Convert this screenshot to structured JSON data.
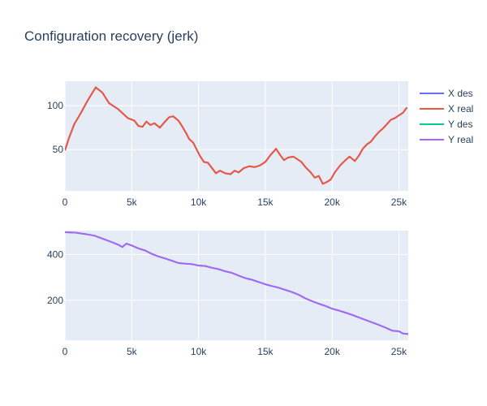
{
  "chart_data": {
    "type": "line",
    "title": "Configuration recovery (jerk)",
    "legend": {
      "placement": "right",
      "entries": [
        {
          "name": "X des",
          "color": "#636efa"
        },
        {
          "name": "X real",
          "color": "#ef553b"
        },
        {
          "name": "Y des",
          "color": "#00cc96"
        },
        {
          "name": "Y real",
          "color": "#ab63fa"
        }
      ]
    },
    "plot_background": "#e5ecf6",
    "grid": true,
    "subplots": [
      {
        "name": "x-subplot",
        "xlim": [
          0,
          25700
        ],
        "ylim": [
          3,
          128
        ],
        "xticks": [
          {
            "value": 0,
            "label": "0"
          },
          {
            "value": 5000,
            "label": "5k"
          },
          {
            "value": 10000,
            "label": "10k"
          },
          {
            "value": 15000,
            "label": "15k"
          },
          {
            "value": 20000,
            "label": "20k"
          },
          {
            "value": 25000,
            "label": "25k"
          }
        ],
        "yticks": [
          {
            "value": 50,
            "label": "50"
          },
          {
            "value": 100,
            "label": "100"
          }
        ],
        "series": [
          {
            "name": "X des",
            "color": "#636efa",
            "x": [
              0,
              300,
              700,
              1200,
              1700,
              2300,
              2800,
              3300,
              4000,
              4700,
              5200,
              5500,
              5800,
              6100,
              6400,
              6700,
              7100,
              7500,
              7800,
              8100,
              8500,
              8800,
              9100,
              9300,
              9600,
              9900,
              10100,
              10400,
              10700,
              11000,
              11300,
              11600,
              12000,
              12400,
              12700,
              13000,
              13400,
              13800,
              14200,
              14600,
              15000,
              15400,
              15800,
              16100,
              16400,
              16700,
              17100,
              17400,
              17700,
              18000,
              18400,
              18700,
              19000,
              19300,
              19600,
              19900,
              20200,
              20600,
              21000,
              21300,
              21700,
              22000,
              22300,
              22600,
              22900,
              23200,
              23500,
              23800,
              24100,
              24400,
              24700,
              25000,
              25300,
              25600
            ],
            "y": [
              49,
              63,
              79,
              92,
              106,
              121,
              115,
              103,
              96,
              86,
              83,
              77,
              76,
              82,
              78,
              80,
              75,
              82,
              87,
              88,
              83,
              76,
              68,
              62,
              58,
              49,
              43,
              36,
              35,
              29,
              23,
              26,
              23,
              22,
              26,
              24,
              29,
              31,
              30,
              32,
              36,
              44,
              51,
              44,
              38,
              41,
              42,
              39,
              36,
              30,
              24,
              18,
              20,
              11,
              13,
              16,
              24,
              32,
              38,
              42,
              37,
              43,
              51,
              56,
              59,
              65,
              70,
              74,
              79,
              84,
              86,
              89,
              92,
              98
            ]
          },
          {
            "name": "X real",
            "color": "#ef553b",
            "x": [
              0,
              300,
              700,
              1200,
              1700,
              2300,
              2800,
              3300,
              4000,
              4700,
              5200,
              5500,
              5800,
              6100,
              6400,
              6700,
              7100,
              7500,
              7800,
              8100,
              8500,
              8800,
              9100,
              9300,
              9600,
              9900,
              10100,
              10400,
              10700,
              11000,
              11300,
              11600,
              12000,
              12400,
              12700,
              13000,
              13400,
              13800,
              14200,
              14600,
              15000,
              15400,
              15800,
              16100,
              16400,
              16700,
              17100,
              17400,
              17700,
              18000,
              18400,
              18700,
              19000,
              19300,
              19600,
              19900,
              20200,
              20600,
              21000,
              21300,
              21700,
              22000,
              22300,
              22600,
              22900,
              23200,
              23500,
              23800,
              24100,
              24400,
              24700,
              25000,
              25300,
              25600
            ],
            "y": [
              49,
              63,
              79,
              92,
              106,
              121,
              115,
              103,
              96,
              86,
              83,
              77,
              76,
              82,
              78,
              80,
              75,
              82,
              87,
              88,
              83,
              76,
              68,
              62,
              58,
              49,
              43,
              36,
              35,
              29,
              23,
              26,
              23,
              22,
              26,
              24,
              29,
              31,
              30,
              32,
              36,
              44,
              51,
              44,
              38,
              41,
              42,
              39,
              36,
              30,
              24,
              18,
              20,
              11,
              13,
              16,
              24,
              32,
              38,
              42,
              37,
              43,
              51,
              56,
              59,
              65,
              70,
              74,
              79,
              84,
              86,
              89,
              92,
              98
            ]
          }
        ]
      },
      {
        "name": "y-subplot",
        "xlim": [
          0,
          25700
        ],
        "ylim": [
          25,
          505
        ],
        "xticks": [
          {
            "value": 0,
            "label": "0"
          },
          {
            "value": 5000,
            "label": "5k"
          },
          {
            "value": 10000,
            "label": "10k"
          },
          {
            "value": 15000,
            "label": "15k"
          },
          {
            "value": 20000,
            "label": "20k"
          },
          {
            "value": 25000,
            "label": "25k"
          }
        ],
        "yticks": [
          {
            "value": 200,
            "label": "200"
          },
          {
            "value": 400,
            "label": "400"
          }
        ],
        "series": [
          {
            "name": "Y des",
            "color": "#00cc96",
            "x": [
              0,
              800,
              1500,
              2200,
              2800,
              3400,
              4000,
              4300,
              4600,
              5000,
              5500,
              6000,
              6500,
              7000,
              7500,
              8000,
              8500,
              9000,
              9500,
              10000,
              10500,
              11000,
              11500,
              12000,
              12500,
              13000,
              13500,
              14000,
              14500,
              15000,
              15500,
              16000,
              16500,
              17000,
              17500,
              18000,
              18500,
              19000,
              19500,
              20000,
              20500,
              21000,
              21500,
              22000,
              22500,
              23000,
              23500,
              24000,
              24500,
              25000,
              25300,
              25700
            ],
            "y": [
              498,
              496,
              490,
              483,
              470,
              457,
              443,
              433,
              448,
              440,
              427,
              418,
              403,
              392,
              383,
              373,
              363,
              360,
              358,
              352,
              350,
              342,
              336,
              327,
              320,
              308,
              297,
              290,
              280,
              270,
              262,
              255,
              245,
              236,
              224,
              208,
              196,
              185,
              175,
              163,
              155,
              146,
              136,
              125,
              114,
              103,
              92,
              80,
              67,
              64,
              54,
              52
            ]
          },
          {
            "name": "Y real",
            "color": "#ab63fa",
            "x": [
              0,
              800,
              1500,
              2200,
              2800,
              3400,
              4000,
              4300,
              4600,
              5000,
              5500,
              6000,
              6500,
              7000,
              7500,
              8000,
              8500,
              9000,
              9500,
              10000,
              10500,
              11000,
              11500,
              12000,
              12500,
              13000,
              13500,
              14000,
              14500,
              15000,
              15500,
              16000,
              16500,
              17000,
              17500,
              18000,
              18500,
              19000,
              19500,
              20000,
              20500,
              21000,
              21500,
              22000,
              22500,
              23000,
              23500,
              24000,
              24500,
              25000,
              25300,
              25700
            ],
            "y": [
              498,
              496,
              490,
              483,
              470,
              457,
              443,
              433,
              448,
              440,
              427,
              418,
              403,
              392,
              383,
              373,
              363,
              360,
              358,
              352,
              350,
              342,
              336,
              327,
              320,
              308,
              297,
              290,
              280,
              270,
              262,
              255,
              245,
              236,
              224,
              208,
              196,
              185,
              175,
              163,
              155,
              146,
              136,
              125,
              114,
              103,
              92,
              80,
              67,
              64,
              54,
              52
            ]
          }
        ]
      }
    ]
  }
}
